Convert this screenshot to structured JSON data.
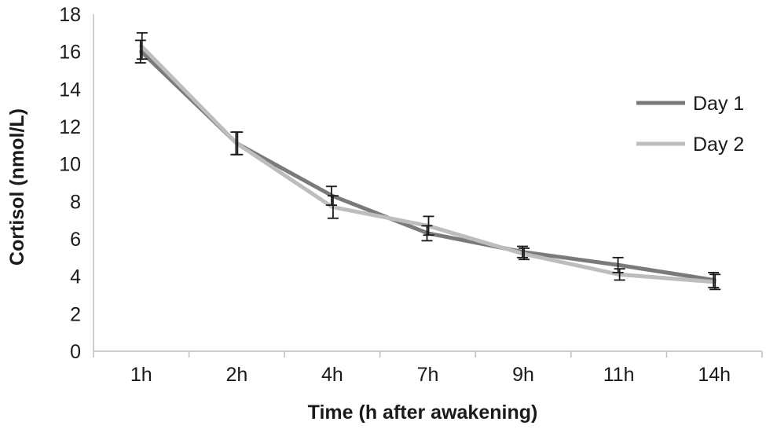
{
  "chart_data": {
    "type": "line",
    "title": "",
    "xlabel": "Time (h after awakening)",
    "ylabel": "Cortisol (nmol/L)",
    "categories": [
      "1h",
      "2h",
      "4h",
      "7h",
      "9h",
      "11h",
      "14h"
    ],
    "ylim": [
      0,
      18
    ],
    "yticks": [
      0,
      2,
      4,
      6,
      8,
      10,
      12,
      14,
      16,
      18
    ],
    "grid": false,
    "legend_position": "right",
    "series": [
      {
        "name": "Day 1",
        "color": "#7a7a7a",
        "values": [
          16.0,
          11.1,
          8.3,
          6.3,
          5.3,
          4.6,
          3.8
        ],
        "error": [
          0.6,
          0.6,
          0.5,
          0.4,
          0.3,
          0.4,
          0.4
        ]
      },
      {
        "name": "Day 2",
        "color": "#bdbdbd",
        "values": [
          16.3,
          11.1,
          7.7,
          6.7,
          5.2,
          4.1,
          3.7
        ],
        "error": [
          0.7,
          0.6,
          0.6,
          0.5,
          0.3,
          0.3,
          0.4
        ]
      }
    ]
  }
}
